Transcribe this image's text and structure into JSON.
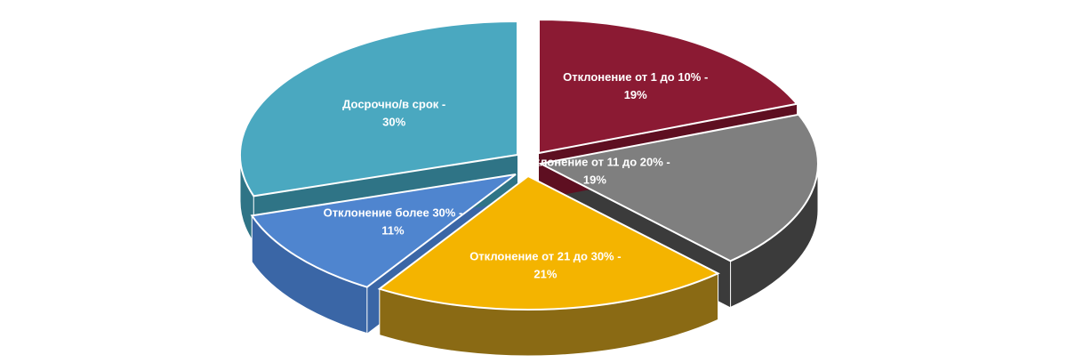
{
  "chart_data": {
    "type": "pie",
    "title": "",
    "slices": [
      {
        "label": "Отклонение от 1 до 10%",
        "value": 19,
        "display": "19%",
        "color": "#8b1a33",
        "side_color": "#5e0f21"
      },
      {
        "label": "Отклонение от 11 до 20%",
        "value": 19,
        "display": "19%",
        "color": "#7f7f7f",
        "side_color": "#3b3b3b"
      },
      {
        "label": "Отклонение от 21 до 30%",
        "value": 21,
        "display": "21%",
        "color": "#f4b400",
        "side_color": "#8a6a14"
      },
      {
        "label": "Отклонение более 30%",
        "value": 11,
        "display": "11%",
        "color": "#4f85cf",
        "side_color": "#3a66a6"
      },
      {
        "label": "Досрочно/в срок",
        "value": 30,
        "display": "30%",
        "color": "#4aa8c0",
        "side_color": "#2f7486"
      }
    ]
  }
}
